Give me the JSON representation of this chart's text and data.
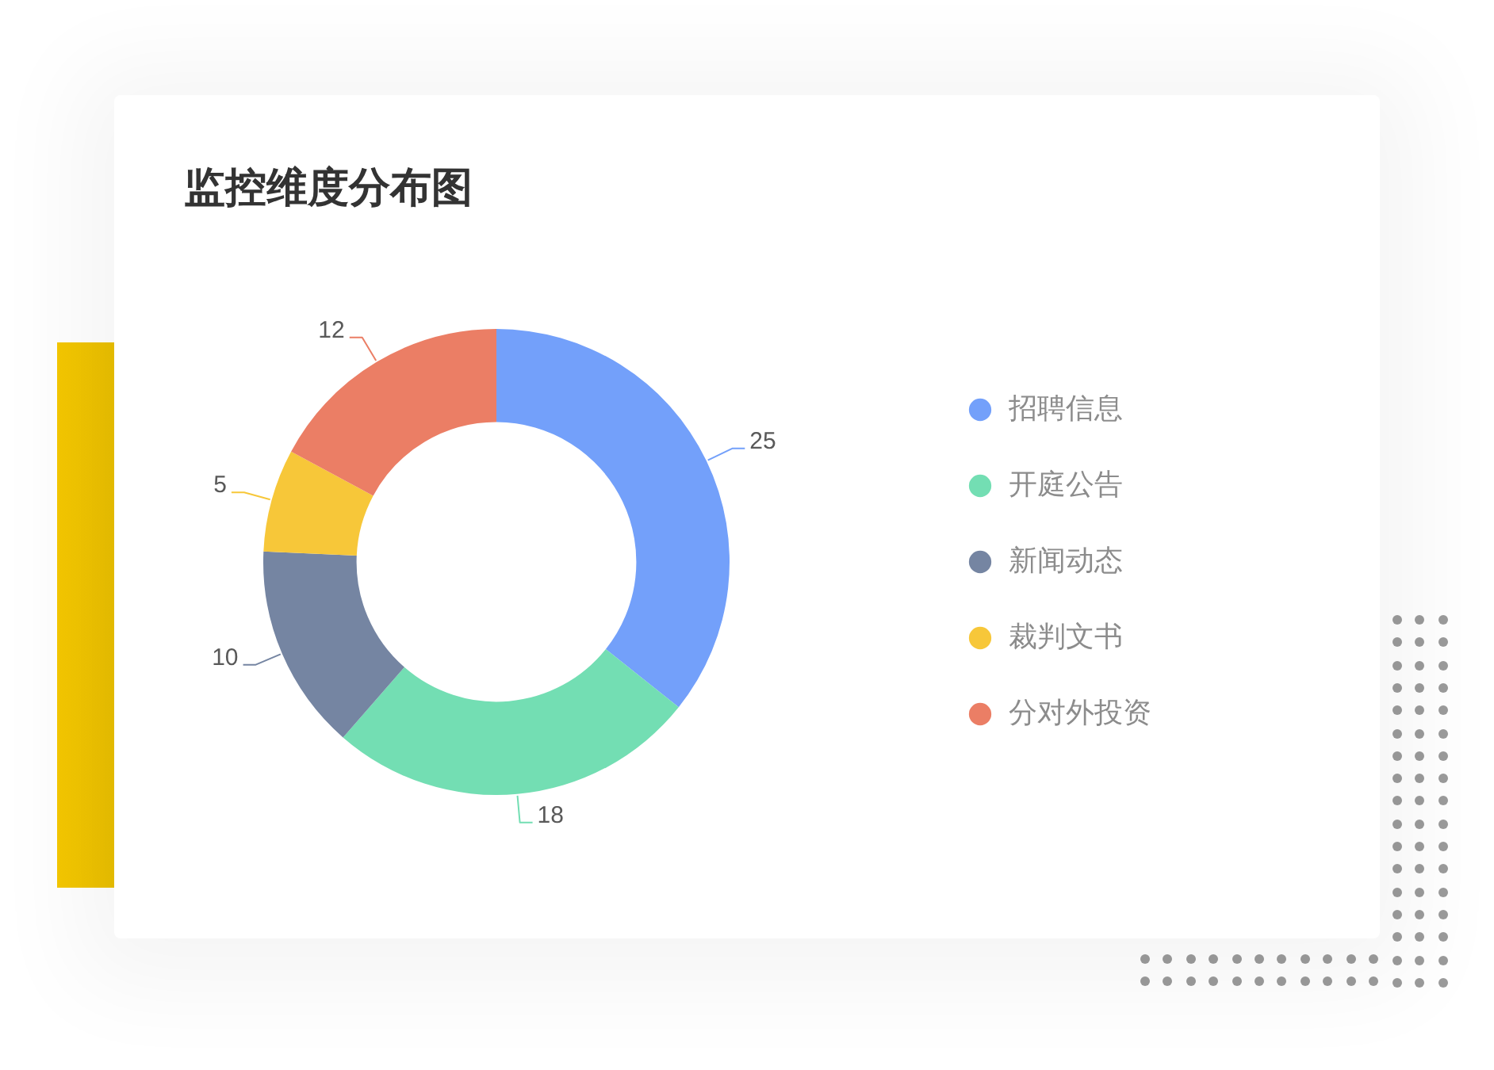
{
  "chart_data": {
    "type": "donut",
    "title": "监控维度分布图",
    "categories": [
      "招聘信息",
      "开庭公告",
      "新闻动态",
      "裁判文书",
      "分对外投资"
    ],
    "values": [
      25,
      18,
      10,
      5,
      12
    ],
    "colors": [
      "#73a0fa",
      "#73deb3",
      "#7585a2",
      "#f7c739",
      "#eb7e65"
    ],
    "legend": "right",
    "data_labels": true
  }
}
